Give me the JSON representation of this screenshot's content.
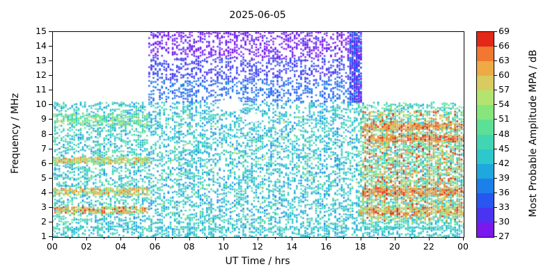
{
  "title": "2025-06-05",
  "chart_data": {
    "type": "scatter",
    "title": "2025-06-05",
    "xlabel": "UT Time / hrs",
    "ylabel": "Frequency / MHz",
    "xlim": [
      0,
      24
    ],
    "ylim": [
      1,
      15
    ],
    "x_tick_values": [
      0,
      2,
      4,
      6,
      8,
      10,
      12,
      14,
      16,
      18,
      20,
      22,
      24
    ],
    "x_tick_labels": [
      "00",
      "02",
      "04",
      "06",
      "08",
      "10",
      "12",
      "14",
      "16",
      "18",
      "20",
      "22",
      "00"
    ],
    "x_minor_step_hr": 1,
    "y_ticks": [
      1,
      2,
      3,
      4,
      5,
      6,
      7,
      8,
      9,
      10,
      11,
      12,
      13,
      14,
      15
    ],
    "grid": "off",
    "marker_px": 2.4,
    "time_grid_hr": 0.125,
    "seed": 20250605,
    "colorbar": {
      "label": "Most Probable Amplitude MPA / dB",
      "min": 27,
      "max": 69,
      "step": 3,
      "tick_labels": [
        27,
        30,
        33,
        36,
        39,
        42,
        45,
        48,
        51,
        54,
        57,
        60,
        63,
        66,
        69
      ],
      "colors": [
        "#7a18ee",
        "#4a34f2",
        "#2856f0",
        "#1c80ea",
        "#1ea8de",
        "#2cc8cc",
        "#40d6b4",
        "#5ce096",
        "#86e67c",
        "#b4e470",
        "#d8cc60",
        "#eeaa44",
        "#f07830",
        "#e22818"
      ]
    },
    "regions": [
      {
        "name": "all-day-lowband",
        "t": [
          0,
          24
        ],
        "f": [
          1.0,
          1.7
        ],
        "n": 700,
        "amp": [
          39,
          47
        ]
      },
      {
        "name": "morning-base",
        "t": [
          0,
          5.6
        ],
        "f": [
          1.5,
          10.2
        ],
        "n": 1900,
        "amp": [
          38,
          51
        ]
      },
      {
        "name": "morning-band-2.8",
        "t": [
          0,
          5.6
        ],
        "f": [
          2.6,
          3.05
        ],
        "n": 260,
        "amp": [
          52,
          69
        ]
      },
      {
        "name": "morning-band-4.1",
        "t": [
          0,
          5.6
        ],
        "f": [
          3.85,
          4.35
        ],
        "n": 240,
        "amp": [
          52,
          66
        ]
      },
      {
        "name": "morning-band-6.2",
        "t": [
          0,
          5.6
        ],
        "f": [
          6.0,
          6.45
        ],
        "n": 240,
        "amp": [
          50,
          64
        ]
      },
      {
        "name": "morning-band-9.0",
        "t": [
          0,
          5.6
        ],
        "f": [
          8.6,
          9.4
        ],
        "n": 200,
        "amp": [
          46,
          58
        ]
      },
      {
        "name": "day-base",
        "t": [
          5.6,
          17.8
        ],
        "f": [
          1.5,
          10.2
        ],
        "n": 3800,
        "amp": [
          38,
          48
        ]
      },
      {
        "name": "day-green-sprinkle",
        "t": [
          5.6,
          17.8
        ],
        "f": [
          1.5,
          9.5
        ],
        "n": 200,
        "amp": [
          48,
          58
        ]
      },
      {
        "name": "day-10-12-blue",
        "t": [
          5.6,
          17.8
        ],
        "f": [
          10.2,
          11.7
        ],
        "n": 650,
        "amp": [
          33,
          39
        ]
      },
      {
        "name": "day-11-13-blue",
        "t": [
          5.6,
          17.8
        ],
        "f": [
          11.7,
          13.2
        ],
        "n": 650,
        "amp": [
          30,
          35
        ]
      },
      {
        "name": "day-top-purple",
        "t": [
          5.6,
          17.8
        ],
        "f": [
          13.2,
          15.0
        ],
        "n": 800,
        "amp": [
          27,
          31
        ]
      },
      {
        "name": "dusk-column",
        "t": [
          17.3,
          18.05
        ],
        "f": [
          10.2,
          15.0
        ],
        "n": 420,
        "amp": [
          28,
          38
        ]
      },
      {
        "name": "evening-base",
        "t": [
          17.8,
          24
        ],
        "f": [
          1.5,
          10.2
        ],
        "n": 2800,
        "amp": [
          40,
          52
        ]
      },
      {
        "name": "evening-hot",
        "t": [
          18.1,
          24
        ],
        "f": [
          2.0,
          9.6
        ],
        "n": 1400,
        "amp": [
          52,
          69
        ]
      },
      {
        "name": "evening-red-4.0",
        "t": [
          18.1,
          24
        ],
        "f": [
          3.8,
          4.35
        ],
        "n": 240,
        "amp": [
          60,
          69
        ]
      },
      {
        "name": "evening-red-7.7",
        "t": [
          18.4,
          24
        ],
        "f": [
          7.5,
          7.95
        ],
        "n": 200,
        "amp": [
          60,
          69
        ]
      },
      {
        "name": "evening-red-8.5",
        "t": [
          18.1,
          24
        ],
        "f": [
          8.3,
          8.75
        ],
        "n": 220,
        "amp": [
          57,
          69
        ]
      },
      {
        "name": "evening-band-2.8",
        "t": [
          17.9,
          24
        ],
        "f": [
          2.5,
          3.05
        ],
        "n": 240,
        "amp": [
          54,
          69
        ]
      }
    ],
    "holes": [
      {
        "t": 10.4,
        "f": 10.0,
        "rt": 0.7,
        "rf": 0.45
      },
      {
        "t": 11.7,
        "f": 9.15,
        "rt": 0.5,
        "rf": 0.3
      }
    ]
  }
}
